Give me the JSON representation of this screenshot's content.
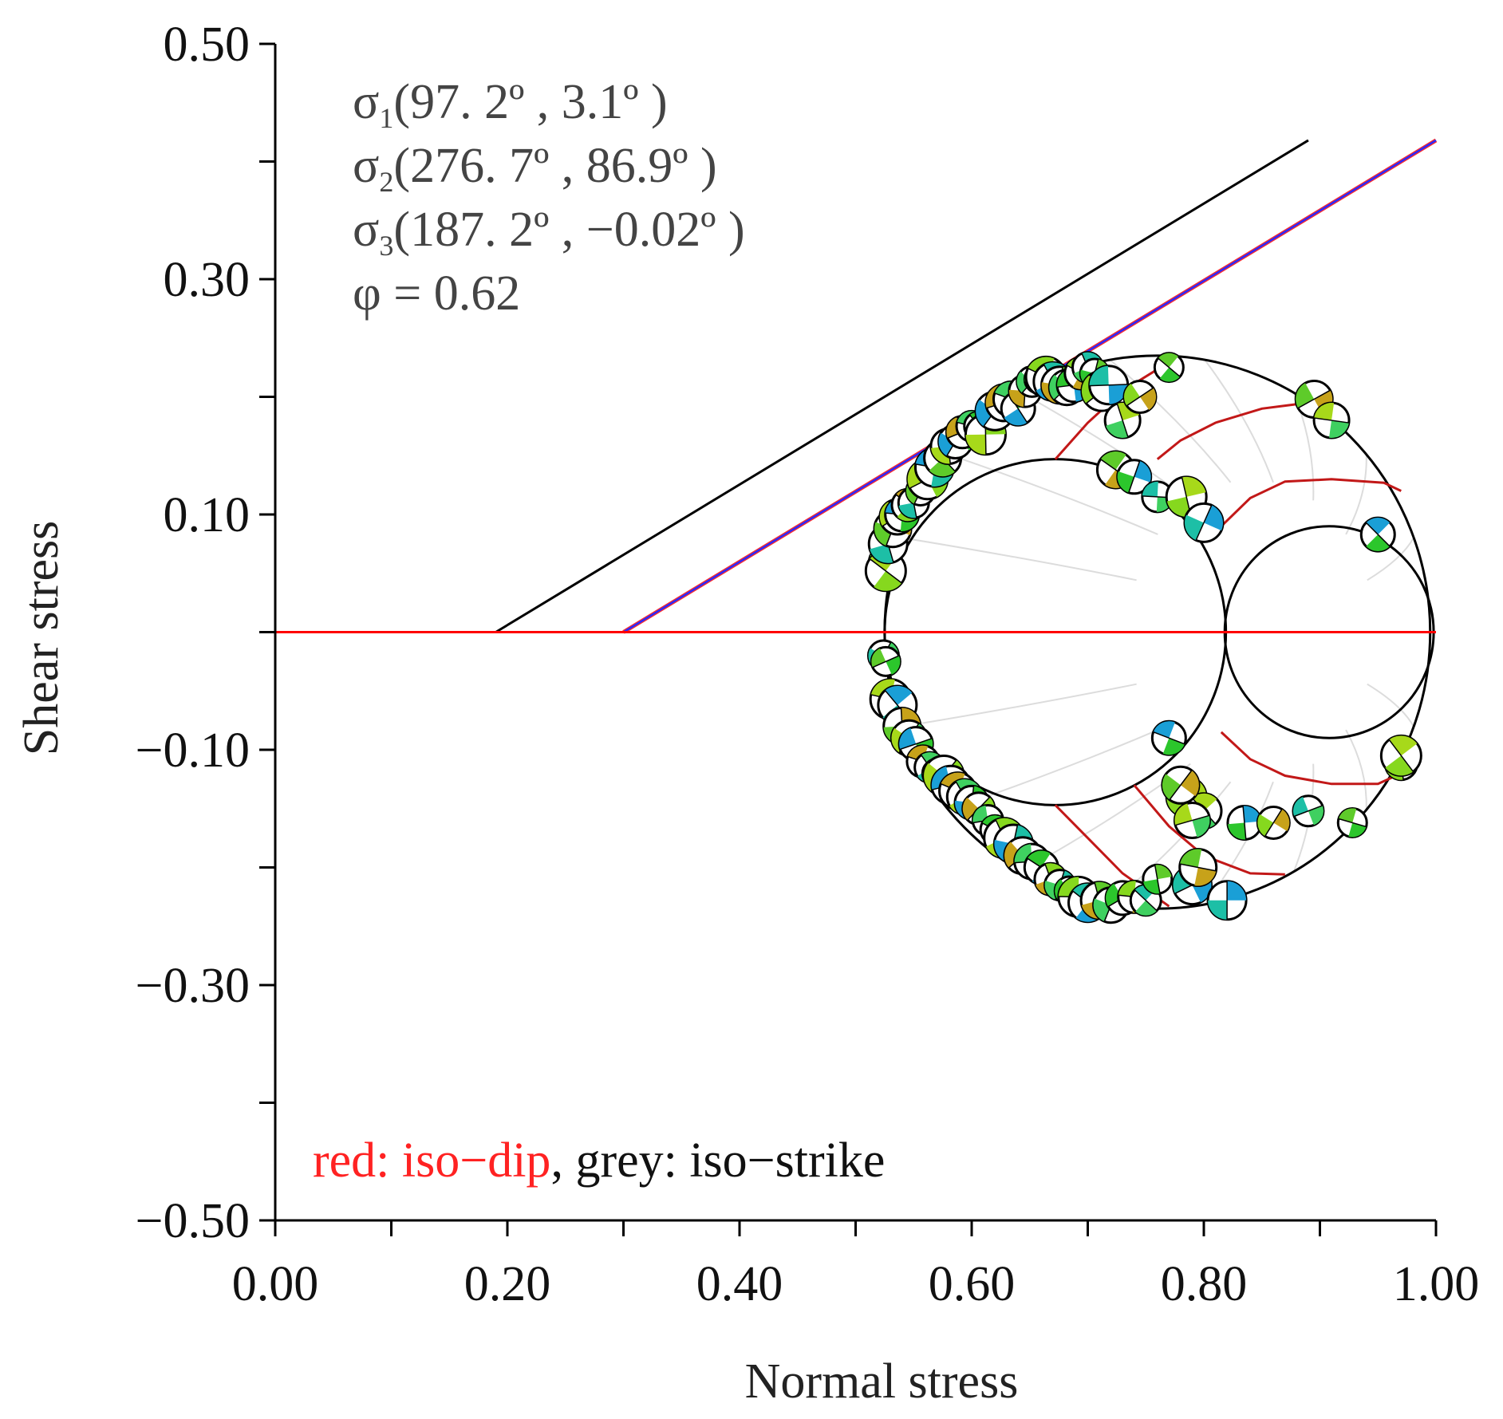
{
  "chart_data": {
    "type": "scatter",
    "subtype": "mohr-circle",
    "xlabel": "Normal stress",
    "ylabel": "Shear stress",
    "xlim": [
      0,
      1
    ],
    "ylim": [
      -0.5,
      0.5
    ],
    "x_ticks": [
      0.0,
      0.1,
      0.2,
      0.3,
      0.4,
      0.5,
      0.6,
      0.7,
      0.8,
      0.9,
      1.0
    ],
    "y_ticks": [
      -0.5,
      -0.4,
      -0.3,
      -0.2,
      -0.1,
      0.0,
      0.1,
      0.2,
      0.3,
      0.4,
      0.5
    ],
    "x_tick_labels": [
      {
        "value": 0.0,
        "label": "0.00"
      },
      {
        "value": 0.2,
        "label": "0.20"
      },
      {
        "value": 0.4,
        "label": "0.40"
      },
      {
        "value": 0.6,
        "label": "0.60"
      },
      {
        "value": 0.8,
        "label": "0.80"
      },
      {
        "value": 1.0,
        "label": "1.00"
      }
    ],
    "y_tick_labels": [
      {
        "value": 0.5,
        "label": "0.50"
      },
      {
        "value": 0.3,
        "label": "0.30"
      },
      {
        "value": 0.1,
        "label": "0.10"
      },
      {
        "value": -0.1,
        "label": "−0.10"
      },
      {
        "value": -0.3,
        "label": "−0.30"
      },
      {
        "value": -0.5,
        "label": "−0.50"
      }
    ],
    "annotations": [
      {
        "symbol": "σ",
        "sub": "1",
        "text": "(97. 2º , 3.1º )"
      },
      {
        "symbol": "σ",
        "sub": "2",
        "text": "(276. 7º , 86.9º )"
      },
      {
        "symbol": "σ",
        "sub": "3",
        "text": "(187. 2º , −0.02º )"
      },
      {
        "symbol": "φ",
        "sub": "",
        "text": " = 0.62"
      }
    ],
    "legend": {
      "red_part": "red: iso−dip",
      "grey_part": ", grey: iso−strike"
    },
    "circles": [
      {
        "name": "sigma1-sigma3",
        "center": 0.76,
        "radius": 0.235
      },
      {
        "name": "sigma2-sigma3",
        "center": 0.672,
        "radius": 0.147
      },
      {
        "name": "sigma1-sigma2",
        "center": 0.908,
        "radius": 0.09
      }
    ],
    "lines": [
      {
        "name": "envelope-black",
        "color": "#000000",
        "points": [
          [
            0.19,
            0.0
          ],
          [
            0.89,
            0.418
          ]
        ]
      },
      {
        "name": "envelope-blue",
        "color": "#2a2aff",
        "points": [
          [
            0.3,
            0.0
          ],
          [
            1.0,
            0.418
          ]
        ]
      },
      {
        "name": "zero-shear",
        "color": "#ff0000",
        "points": [
          [
            0.0,
            0.0
          ],
          [
            1.0,
            0.0
          ]
        ]
      }
    ],
    "iso_dip_curves": [
      {
        "name": "iso-dip-1",
        "points": [
          [
            0.672,
            0.147
          ],
          [
            0.7,
            0.178
          ],
          [
            0.73,
            0.205
          ],
          [
            0.766,
            0.227
          ]
        ]
      },
      {
        "name": "iso-dip-2",
        "points": [
          [
            0.76,
            0.147
          ],
          [
            0.78,
            0.163
          ],
          [
            0.81,
            0.178
          ],
          [
            0.85,
            0.19
          ],
          [
            0.89,
            0.195
          ]
        ]
      },
      {
        "name": "iso-dip-3",
        "points": [
          [
            0.815,
            0.09
          ],
          [
            0.84,
            0.114
          ],
          [
            0.87,
            0.128
          ],
          [
            0.91,
            0.13
          ],
          [
            0.955,
            0.127
          ],
          [
            0.97,
            0.12
          ]
        ]
      },
      {
        "name": "iso-dip-4",
        "points": [
          [
            0.82,
            0.0
          ],
          [
            0.818,
            0.0
          ]
        ]
      },
      {
        "name": "iso-dip-5",
        "points": [
          [
            0.815,
            -0.085
          ],
          [
            0.84,
            -0.108
          ],
          [
            0.87,
            -0.122
          ],
          [
            0.91,
            -0.129
          ],
          [
            0.95,
            -0.129
          ],
          [
            0.97,
            -0.12
          ]
        ]
      },
      {
        "name": "iso-dip-6",
        "points": [
          [
            0.74,
            -0.13
          ],
          [
            0.77,
            -0.165
          ],
          [
            0.8,
            -0.19
          ],
          [
            0.84,
            -0.205
          ],
          [
            0.87,
            -0.206
          ]
        ]
      },
      {
        "name": "iso-dip-7",
        "points": [
          [
            0.672,
            -0.147
          ],
          [
            0.7,
            -0.175
          ],
          [
            0.73,
            -0.205
          ],
          [
            0.77,
            -0.233
          ]
        ]
      }
    ],
    "iso_strike_spokes": 9,
    "series": [
      {
        "name": "fault-planes",
        "x": [
          0.524,
          0.526,
          0.528,
          0.532,
          0.536,
          0.54,
          0.545,
          0.55,
          0.556,
          0.562,
          0.568,
          0.575,
          0.58,
          0.586,
          0.592,
          0.6,
          0.606,
          0.612,
          0.62,
          0.628,
          0.634,
          0.64,
          0.646,
          0.652,
          0.658,
          0.664,
          0.67,
          0.676,
          0.682,
          0.688,
          0.694,
          0.7,
          0.706,
          0.712,
          0.718,
          0.724,
          0.73,
          0.74,
          0.745,
          0.76,
          0.77,
          0.785,
          0.8,
          0.895,
          0.91,
          0.95,
          0.97,
          0.524,
          0.526,
          0.53,
          0.536,
          0.54,
          0.546,
          0.552,
          0.558,
          0.564,
          0.57,
          0.576,
          0.582,
          0.588,
          0.594,
          0.6,
          0.606,
          0.614,
          0.62,
          0.628,
          0.636,
          0.644,
          0.652,
          0.66,
          0.668,
          0.676,
          0.684,
          0.692,
          0.7,
          0.71,
          0.72,
          0.73,
          0.74,
          0.75,
          0.76,
          0.785,
          0.79,
          0.795,
          0.8,
          0.835,
          0.86,
          0.89,
          0.928,
          0.97,
          0.82,
          0.78,
          0.79,
          0.77
        ],
        "y": [
          0.06,
          0.052,
          0.075,
          0.088,
          0.098,
          0.1,
          0.108,
          0.11,
          0.12,
          0.13,
          0.14,
          0.148,
          0.158,
          0.162,
          0.17,
          0.175,
          0.175,
          0.168,
          0.188,
          0.195,
          0.198,
          0.19,
          0.205,
          0.213,
          0.215,
          0.217,
          0.213,
          0.21,
          0.208,
          0.21,
          0.22,
          0.225,
          0.22,
          0.205,
          0.21,
          0.138,
          0.18,
          0.132,
          0.2,
          0.115,
          0.225,
          0.115,
          0.093,
          0.198,
          0.18,
          0.083,
          -0.112,
          -0.02,
          -0.025,
          -0.057,
          -0.062,
          -0.08,
          -0.09,
          -0.095,
          -0.11,
          -0.115,
          -0.12,
          -0.122,
          -0.13,
          -0.135,
          -0.14,
          -0.145,
          -0.15,
          -0.16,
          -0.168,
          -0.175,
          -0.18,
          -0.19,
          -0.195,
          -0.2,
          -0.21,
          -0.215,
          -0.22,
          -0.225,
          -0.23,
          -0.228,
          -0.232,
          -0.226,
          -0.225,
          -0.228,
          -0.21,
          -0.14,
          -0.215,
          -0.2,
          -0.152,
          -0.162,
          -0.162,
          -0.152,
          -0.162,
          -0.105,
          -0.228,
          -0.13,
          -0.16,
          -0.09
        ]
      }
    ]
  }
}
